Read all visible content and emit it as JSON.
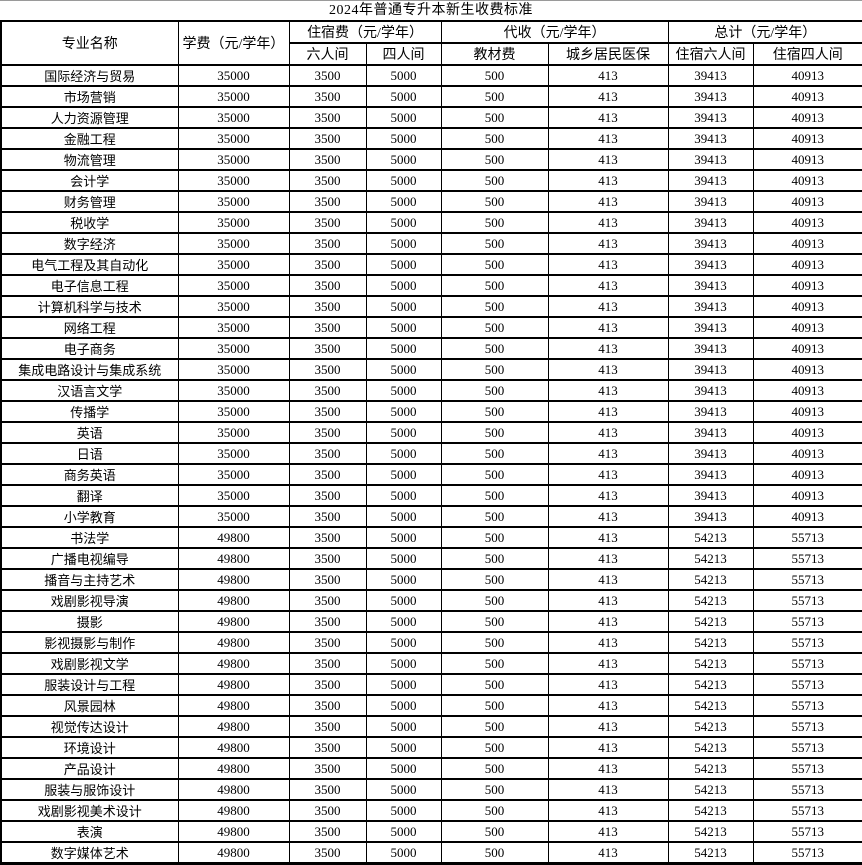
{
  "title": "2024年普通专升本新生收费标准",
  "table": {
    "headers": {
      "major": "专业名称",
      "tuition": "学费（元/学年）",
      "accommodation_group": "住宿费（元/学年）",
      "accommodation_sub": [
        "六人间",
        "四人间"
      ],
      "collection_group": "代收（元/学年）",
      "collection_sub": [
        "教材费",
        "城乡居民医保"
      ],
      "total_group": "总计（元/学年）",
      "total_sub": [
        "住宿六人间",
        "住宿四人间"
      ]
    },
    "rows": [
      [
        "国际经济与贸易",
        "35000",
        "3500",
        "5000",
        "500",
        "413",
        "39413",
        "40913"
      ],
      [
        "市场营销",
        "35000",
        "3500",
        "5000",
        "500",
        "413",
        "39413",
        "40913"
      ],
      [
        "人力资源管理",
        "35000",
        "3500",
        "5000",
        "500",
        "413",
        "39413",
        "40913"
      ],
      [
        "金融工程",
        "35000",
        "3500",
        "5000",
        "500",
        "413",
        "39413",
        "40913"
      ],
      [
        "物流管理",
        "35000",
        "3500",
        "5000",
        "500",
        "413",
        "39413",
        "40913"
      ],
      [
        "会计学",
        "35000",
        "3500",
        "5000",
        "500",
        "413",
        "39413",
        "40913"
      ],
      [
        "财务管理",
        "35000",
        "3500",
        "5000",
        "500",
        "413",
        "39413",
        "40913"
      ],
      [
        "税收学",
        "35000",
        "3500",
        "5000",
        "500",
        "413",
        "39413",
        "40913"
      ],
      [
        "数字经济",
        "35000",
        "3500",
        "5000",
        "500",
        "413",
        "39413",
        "40913"
      ],
      [
        "电气工程及其自动化",
        "35000",
        "3500",
        "5000",
        "500",
        "413",
        "39413",
        "40913"
      ],
      [
        "电子信息工程",
        "35000",
        "3500",
        "5000",
        "500",
        "413",
        "39413",
        "40913"
      ],
      [
        "计算机科学与技术",
        "35000",
        "3500",
        "5000",
        "500",
        "413",
        "39413",
        "40913"
      ],
      [
        "网络工程",
        "35000",
        "3500",
        "5000",
        "500",
        "413",
        "39413",
        "40913"
      ],
      [
        "电子商务",
        "35000",
        "3500",
        "5000",
        "500",
        "413",
        "39413",
        "40913"
      ],
      [
        "集成电路设计与集成系统",
        "35000",
        "3500",
        "5000",
        "500",
        "413",
        "39413",
        "40913"
      ],
      [
        "汉语言文学",
        "35000",
        "3500",
        "5000",
        "500",
        "413",
        "39413",
        "40913"
      ],
      [
        "传播学",
        "35000",
        "3500",
        "5000",
        "500",
        "413",
        "39413",
        "40913"
      ],
      [
        "英语",
        "35000",
        "3500",
        "5000",
        "500",
        "413",
        "39413",
        "40913"
      ],
      [
        "日语",
        "35000",
        "3500",
        "5000",
        "500",
        "413",
        "39413",
        "40913"
      ],
      [
        "商务英语",
        "35000",
        "3500",
        "5000",
        "500",
        "413",
        "39413",
        "40913"
      ],
      [
        "翻译",
        "35000",
        "3500",
        "5000",
        "500",
        "413",
        "39413",
        "40913"
      ],
      [
        "小学教育",
        "35000",
        "3500",
        "5000",
        "500",
        "413",
        "39413",
        "40913"
      ],
      [
        "书法学",
        "49800",
        "3500",
        "5000",
        "500",
        "413",
        "54213",
        "55713"
      ],
      [
        "广播电视编导",
        "49800",
        "3500",
        "5000",
        "500",
        "413",
        "54213",
        "55713"
      ],
      [
        "播音与主持艺术",
        "49800",
        "3500",
        "5000",
        "500",
        "413",
        "54213",
        "55713"
      ],
      [
        "戏剧影视导演",
        "49800",
        "3500",
        "5000",
        "500",
        "413",
        "54213",
        "55713"
      ],
      [
        "摄影",
        "49800",
        "3500",
        "5000",
        "500",
        "413",
        "54213",
        "55713"
      ],
      [
        "影视摄影与制作",
        "49800",
        "3500",
        "5000",
        "500",
        "413",
        "54213",
        "55713"
      ],
      [
        "戏剧影视文学",
        "49800",
        "3500",
        "5000",
        "500",
        "413",
        "54213",
        "55713"
      ],
      [
        "服装设计与工程",
        "49800",
        "3500",
        "5000",
        "500",
        "413",
        "54213",
        "55713"
      ],
      [
        "风景园林",
        "49800",
        "3500",
        "5000",
        "500",
        "413",
        "54213",
        "55713"
      ],
      [
        "视觉传达设计",
        "49800",
        "3500",
        "5000",
        "500",
        "413",
        "54213",
        "55713"
      ],
      [
        "环境设计",
        "49800",
        "3500",
        "5000",
        "500",
        "413",
        "54213",
        "55713"
      ],
      [
        "产品设计",
        "49800",
        "3500",
        "5000",
        "500",
        "413",
        "54213",
        "55713"
      ],
      [
        "服装与服饰设计",
        "49800",
        "3500",
        "5000",
        "500",
        "413",
        "54213",
        "55713"
      ],
      [
        "戏剧影视美术设计",
        "49800",
        "3500",
        "5000",
        "500",
        "413",
        "54213",
        "55713"
      ],
      [
        "表演",
        "49800",
        "3500",
        "5000",
        "500",
        "413",
        "54213",
        "55713"
      ],
      [
        "数字媒体艺术",
        "49800",
        "3500",
        "5000",
        "500",
        "413",
        "54213",
        "55713"
      ]
    ],
    "column_keys": [
      "major",
      "tuition",
      "room6",
      "room4",
      "textbook",
      "insurance",
      "total6",
      "total4"
    ]
  }
}
